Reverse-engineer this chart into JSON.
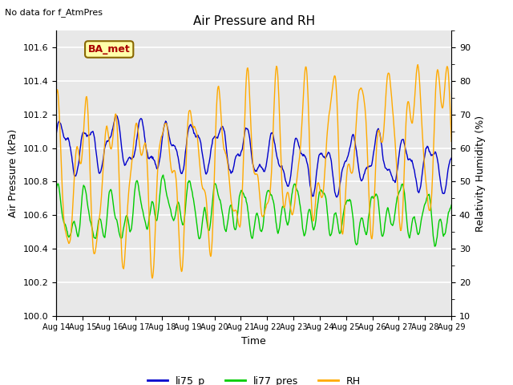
{
  "title": "Air Pressure and RH",
  "subtitle": "No data for f_AtmPres",
  "xlabel": "Time",
  "ylabel_left": "Air Pressure (kPa)",
  "ylabel_right": "Relativity Humidity (%)",
  "ylim_left": [
    100.0,
    101.7
  ],
  "ylim_right": [
    10,
    95
  ],
  "yticks_left": [
    100.0,
    100.2,
    100.4,
    100.6,
    100.8,
    101.0,
    101.2,
    101.4,
    101.6
  ],
  "yticks_right": [
    10,
    20,
    30,
    40,
    50,
    60,
    70,
    80,
    90
  ],
  "xtick_labels": [
    "Aug 14",
    "Aug 15",
    "Aug 16",
    "Aug 17",
    "Aug 18",
    "Aug 19",
    "Aug 20",
    "Aug 21",
    "Aug 22",
    "Aug 23",
    "Aug 24",
    "Aug 25",
    "Aug 26",
    "Aug 27",
    "Aug 28",
    "Aug 29"
  ],
  "n_points": 800,
  "color_blue": "#0000cc",
  "color_green": "#00cc00",
  "color_orange": "#ffaa00",
  "legend_labels": [
    "li75_p",
    "li77_pres",
    "RH"
  ],
  "bbox_label": "BA_met",
  "bbox_facecolor": "#ffffaa",
  "bbox_edgecolor": "#886600",
  "bbox_text_color": "#aa0000",
  "plot_bg": "#e8e8e8",
  "grid_color": "#ffffff",
  "fig_bg": "#ffffff"
}
